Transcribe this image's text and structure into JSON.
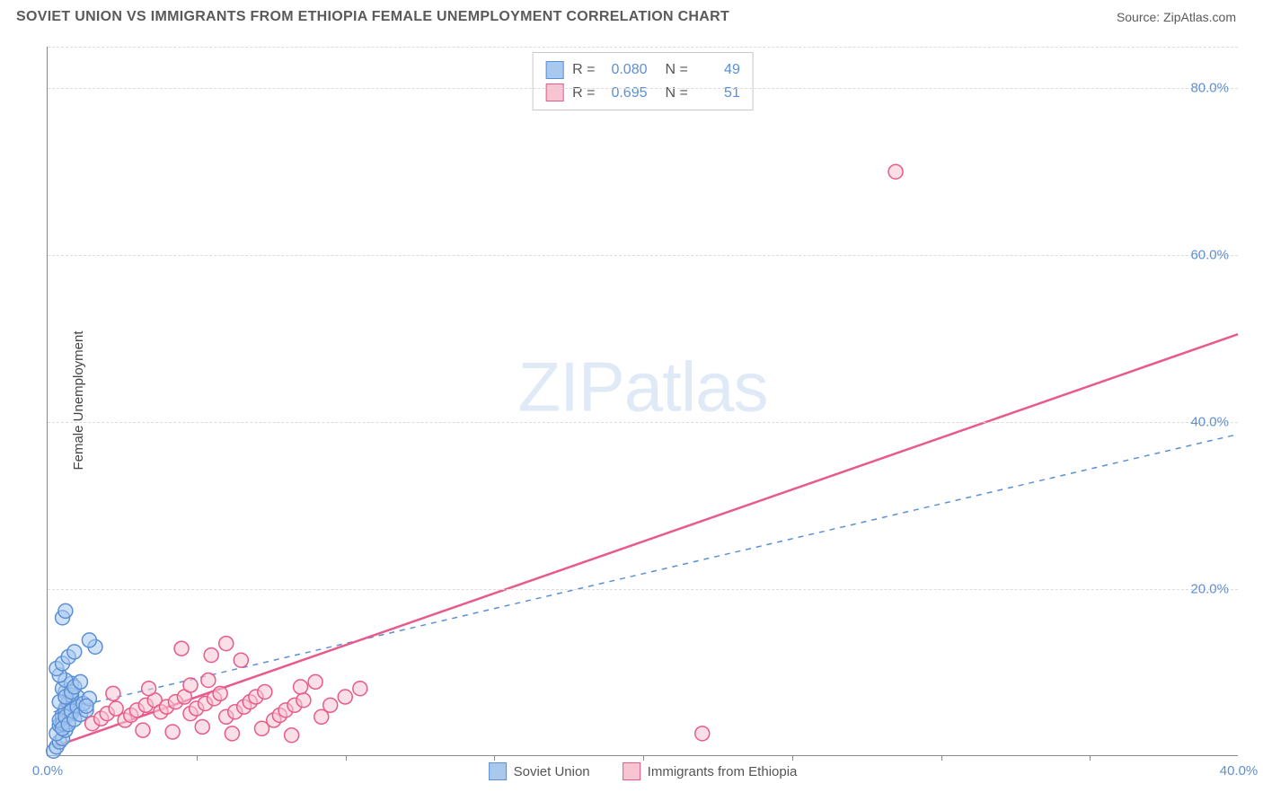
{
  "title": "SOVIET UNION VS IMMIGRANTS FROM ETHIOPIA FEMALE UNEMPLOYMENT CORRELATION CHART",
  "source": "Source: ZipAtlas.com",
  "y_axis_label": "Female Unemployment",
  "watermark": {
    "bold": "ZIP",
    "light": "atlas"
  },
  "chart": {
    "type": "scatter",
    "xlim": [
      0,
      40
    ],
    "ylim": [
      0,
      85
    ],
    "x_ticks": [
      0.0,
      40.0
    ],
    "x_tick_labels": [
      "0.0%",
      "40.0%"
    ],
    "x_tick_marks": [
      5,
      10,
      15,
      20,
      25,
      30,
      35
    ],
    "y_ticks": [
      20.0,
      40.0,
      60.0,
      80.0
    ],
    "y_tick_labels": [
      "20.0%",
      "40.0%",
      "60.0%",
      "80.0%"
    ],
    "gridlines_y": [
      20,
      40,
      60,
      80,
      85
    ],
    "background_color": "#ffffff",
    "grid_color": "#dcdcdc",
    "axis_color": "#888888",
    "tick_label_color": "#5b8fd6",
    "marker_radius": 8,
    "marker_stroke_width": 1.5,
    "series": [
      {
        "name": "Soviet Union",
        "fill": "#a8c8ee",
        "stroke": "#5b8fd6",
        "fill_opacity": 0.55,
        "points": [
          [
            0.2,
            0.5
          ],
          [
            0.3,
            1.0
          ],
          [
            0.4,
            1.6
          ],
          [
            0.5,
            2.0
          ],
          [
            0.3,
            2.6
          ],
          [
            0.6,
            3.0
          ],
          [
            0.4,
            3.6
          ],
          [
            0.7,
            4.0
          ],
          [
            0.5,
            4.4
          ],
          [
            0.8,
            5.0
          ],
          [
            0.6,
            5.6
          ],
          [
            0.9,
            6.0
          ],
          [
            0.7,
            6.6
          ],
          [
            1.0,
            7.0
          ],
          [
            0.6,
            7.6
          ],
          [
            0.5,
            8.0
          ],
          [
            0.8,
            8.6
          ],
          [
            0.6,
            9.0
          ],
          [
            0.4,
            9.6
          ],
          [
            0.3,
            10.4
          ],
          [
            0.5,
            11.0
          ],
          [
            0.7,
            11.8
          ],
          [
            0.9,
            12.4
          ],
          [
            0.5,
            4.8
          ],
          [
            0.6,
            5.4
          ],
          [
            0.7,
            6.3
          ],
          [
            0.8,
            7.2
          ],
          [
            0.5,
            3.8
          ],
          [
            0.4,
            4.2
          ],
          [
            0.6,
            4.6
          ],
          [
            0.8,
            5.3
          ],
          [
            1.0,
            5.8
          ],
          [
            0.4,
            6.4
          ],
          [
            0.6,
            7.0
          ],
          [
            0.8,
            7.6
          ],
          [
            0.9,
            8.2
          ],
          [
            1.1,
            8.8
          ],
          [
            0.5,
            3.2
          ],
          [
            0.7,
            3.7
          ],
          [
            0.9,
            4.3
          ],
          [
            1.1,
            4.9
          ],
          [
            1.3,
            5.4
          ],
          [
            0.5,
            16.5
          ],
          [
            0.6,
            17.3
          ],
          [
            1.6,
            13.0
          ],
          [
            1.4,
            13.8
          ],
          [
            1.2,
            6.2
          ],
          [
            1.4,
            6.8
          ],
          [
            1.3,
            5.9
          ]
        ],
        "trend": {
          "dash": "6 6",
          "color": "#5b8fd6",
          "width": 1.5,
          "x1": 0.2,
          "y1": 5.2,
          "x2": 40.0,
          "y2": 38.5
        }
      },
      {
        "name": "Immigrants from Ethiopia",
        "fill": "#f7c5d2",
        "stroke": "#e85a8a",
        "fill_opacity": 0.55,
        "points": [
          [
            1.5,
            3.8
          ],
          [
            1.8,
            4.4
          ],
          [
            2.0,
            5.0
          ],
          [
            2.3,
            5.6
          ],
          [
            2.6,
            4.2
          ],
          [
            2.8,
            4.8
          ],
          [
            3.0,
            5.4
          ],
          [
            3.3,
            6.0
          ],
          [
            3.6,
            6.6
          ],
          [
            3.8,
            5.2
          ],
          [
            4.0,
            5.8
          ],
          [
            4.3,
            6.4
          ],
          [
            4.6,
            7.0
          ],
          [
            4.8,
            5.0
          ],
          [
            5.0,
            5.6
          ],
          [
            5.3,
            6.2
          ],
          [
            5.6,
            6.8
          ],
          [
            5.8,
            7.4
          ],
          [
            6.0,
            4.6
          ],
          [
            6.3,
            5.2
          ],
          [
            6.6,
            5.8
          ],
          [
            6.8,
            6.4
          ],
          [
            7.0,
            7.0
          ],
          [
            7.3,
            7.6
          ],
          [
            7.6,
            4.2
          ],
          [
            7.8,
            4.8
          ],
          [
            8.0,
            5.4
          ],
          [
            8.3,
            6.0
          ],
          [
            8.6,
            6.6
          ],
          [
            3.2,
            3.0
          ],
          [
            4.2,
            2.8
          ],
          [
            5.2,
            3.4
          ],
          [
            6.2,
            2.6
          ],
          [
            7.2,
            3.2
          ],
          [
            8.2,
            2.4
          ],
          [
            4.5,
            12.8
          ],
          [
            5.5,
            12.0
          ],
          [
            6.5,
            11.4
          ],
          [
            6.0,
            13.4
          ],
          [
            8.5,
            8.2
          ],
          [
            9.0,
            8.8
          ],
          [
            9.5,
            6.0
          ],
          [
            10.0,
            7.0
          ],
          [
            10.5,
            8.0
          ],
          [
            9.2,
            4.6
          ],
          [
            4.8,
            8.4
          ],
          [
            5.4,
            9.0
          ],
          [
            3.4,
            8.0
          ],
          [
            2.2,
            7.4
          ],
          [
            22.0,
            2.6
          ],
          [
            28.5,
            70.0
          ]
        ],
        "trend": {
          "dash": "none",
          "color": "#e85a8a",
          "width": 2.5,
          "x1": 0.2,
          "y1": 1.0,
          "x2": 40.0,
          "y2": 50.5
        }
      }
    ]
  },
  "stats_box": {
    "rows": [
      {
        "swatch": "blue",
        "r_label": "R =",
        "r_val": "0.080",
        "n_label": "N =",
        "n_val": "49"
      },
      {
        "swatch": "pink",
        "r_label": "R =",
        "r_val": "0.695",
        "n_label": "N =",
        "n_val": "51"
      }
    ]
  },
  "bottom_legend": [
    {
      "swatch": "blue",
      "label": "Soviet Union"
    },
    {
      "swatch": "pink",
      "label": "Immigrants from Ethiopia"
    }
  ]
}
